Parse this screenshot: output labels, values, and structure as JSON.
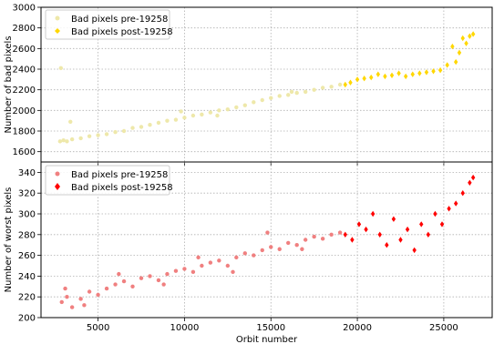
{
  "chart_data": [
    {
      "type": "scatter",
      "xlabel": "",
      "ylabel": "Number of bad pixels",
      "xlim": [
        1700,
        27800
      ],
      "ylim": [
        1500,
        3000
      ],
      "yticks": [
        1600,
        1800,
        2000,
        2200,
        2400,
        2600,
        2800,
        3000
      ],
      "grid": true,
      "legend_position": "top-left",
      "series": [
        {
          "name": "Bad pixels pre-19258",
          "color": "#eee8aa",
          "marker": "circle",
          "x": [
            2800,
            3000,
            3200,
            3500,
            4000,
            4500,
            5000,
            5500,
            6000,
            6500,
            7000,
            7500,
            8000,
            8500,
            9000,
            9500,
            10000,
            10500,
            11000,
            11500,
            12000,
            12500,
            13000,
            13500,
            14000,
            14500,
            15000,
            15500,
            16000,
            16500,
            17000,
            17500,
            18000,
            18500,
            19000,
            2850,
            3400,
            9800,
            11900,
            16200
          ],
          "y": [
            1700,
            1710,
            1700,
            1720,
            1730,
            1750,
            1760,
            1770,
            1790,
            1800,
            1830,
            1840,
            1860,
            1880,
            1900,
            1910,
            1930,
            1950,
            1960,
            1980,
            2000,
            2010,
            2030,
            2050,
            2080,
            2100,
            2120,
            2140,
            2150,
            2170,
            2180,
            2200,
            2220,
            2230,
            2250,
            2410,
            1890,
            1990,
            1950,
            2180
          ]
        },
        {
          "name": "Bad pixels post-19258",
          "color": "#ffd700",
          "marker": "diamond",
          "x": [
            19300,
            19600,
            20000,
            20400,
            20800,
            21200,
            21600,
            22000,
            22400,
            22800,
            23200,
            23600,
            24000,
            24400,
            24800,
            25200,
            25500,
            25700,
            25900,
            26100,
            26300,
            26500,
            26700
          ],
          "y": [
            2250,
            2270,
            2300,
            2310,
            2320,
            2350,
            2330,
            2340,
            2360,
            2330,
            2350,
            2360,
            2370,
            2380,
            2390,
            2440,
            2620,
            2470,
            2560,
            2700,
            2650,
            2720,
            2740
          ]
        }
      ]
    },
    {
      "type": "scatter",
      "xlabel": "Orbit number",
      "ylabel": "Number of worst pixels",
      "xlim": [
        1700,
        27800
      ],
      "ylim": [
        200,
        350
      ],
      "xticks": [
        5000,
        10000,
        15000,
        20000,
        25000
      ],
      "yticks": [
        200,
        220,
        240,
        260,
        280,
        300,
        320,
        340
      ],
      "grid": true,
      "legend_position": "top-left",
      "series": [
        {
          "name": "Bad pixels pre-19258",
          "color": "#f08080",
          "marker": "circle",
          "x": [
            2900,
            3200,
            3500,
            4000,
            4500,
            5000,
            5500,
            6000,
            6500,
            7000,
            7500,
            8000,
            8500,
            9000,
            9500,
            10000,
            10500,
            11000,
            11500,
            12000,
            12500,
            13000,
            13500,
            14000,
            14500,
            15000,
            15500,
            16000,
            16500,
            17000,
            17500,
            18000,
            18500,
            19000,
            3100,
            4200,
            6200,
            8800,
            10800,
            12800,
            14800,
            16800
          ],
          "y": [
            215,
            220,
            210,
            218,
            225,
            222,
            228,
            232,
            235,
            230,
            238,
            240,
            236,
            242,
            245,
            247,
            244,
            250,
            253,
            255,
            250,
            258,
            262,
            260,
            265,
            268,
            266,
            272,
            270,
            275,
            278,
            276,
            280,
            282,
            228,
            212,
            242,
            232,
            258,
            244,
            282,
            266
          ]
        },
        {
          "name": "Bad pixels post-19258",
          "color": "#ff0000",
          "marker": "diamond",
          "x": [
            19300,
            19700,
            20100,
            20500,
            20900,
            21300,
            21700,
            22100,
            22500,
            22900,
            23300,
            23700,
            24100,
            24500,
            24900,
            25300,
            25700,
            26100,
            26500,
            26700
          ],
          "y": [
            280,
            275,
            290,
            285,
            300,
            280,
            270,
            295,
            275,
            285,
            265,
            290,
            280,
            300,
            290,
            305,
            310,
            320,
            330,
            335
          ]
        }
      ]
    }
  ]
}
